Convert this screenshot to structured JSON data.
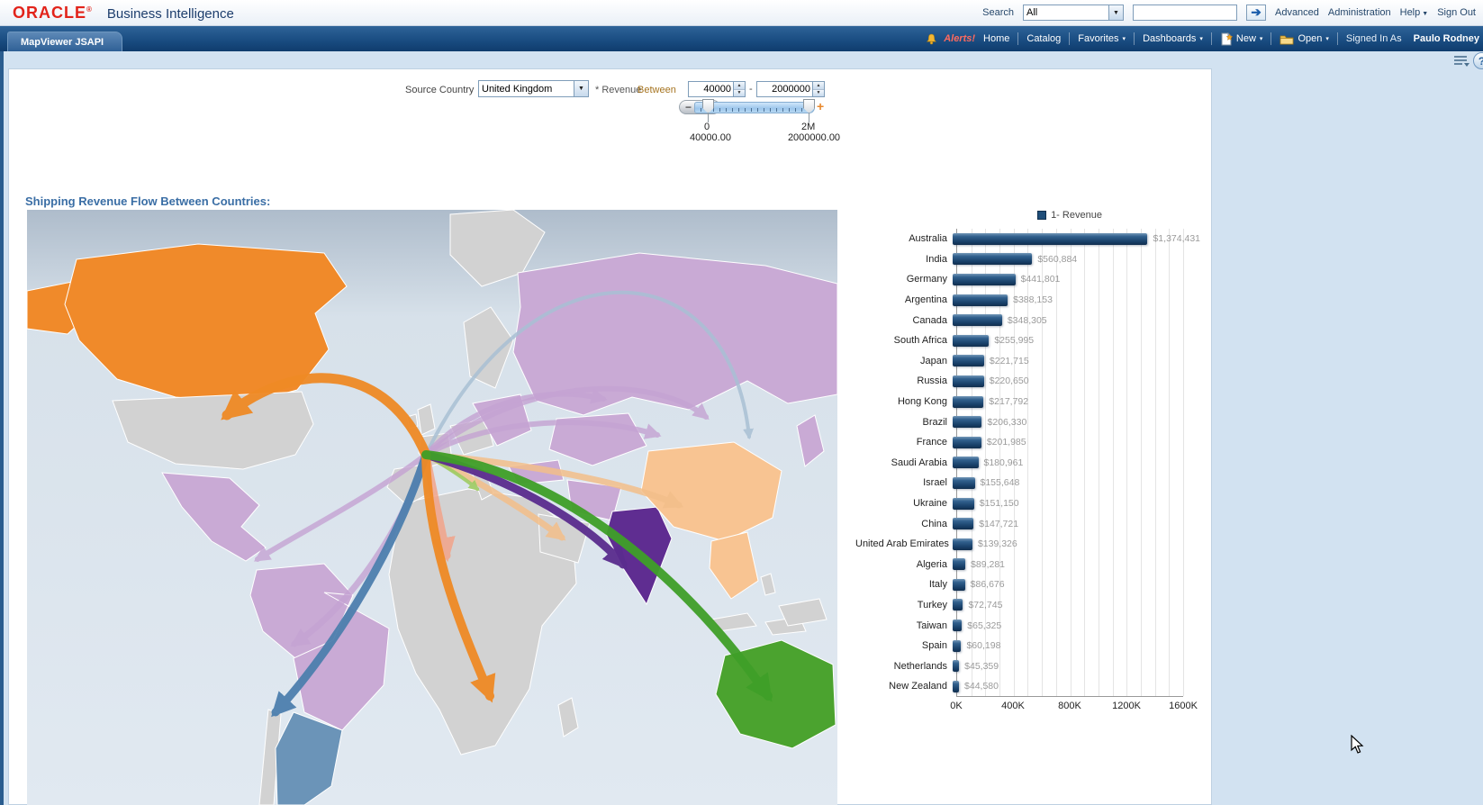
{
  "header": {
    "brand": "ORACLE",
    "product": "Business Intelligence",
    "search_label": "Search",
    "search_scope": "All",
    "search_value": "",
    "advanced": "Advanced",
    "administration": "Administration",
    "help": "Help",
    "sign_out": "Sign Out"
  },
  "navbar": {
    "tab": "MapViewer JSAPI",
    "alerts": "Alerts!",
    "items": [
      {
        "label": "Home",
        "caret": false
      },
      {
        "label": "Catalog",
        "caret": false
      },
      {
        "label": "Favorites",
        "caret": true
      },
      {
        "label": "Dashboards",
        "caret": true
      }
    ],
    "new_label": "New",
    "open_label": "Open",
    "signed_in_as": "Signed In As",
    "user": "Paulo Rodney"
  },
  "filters": {
    "source_country_label": "Source Country",
    "source_country_value": "United Kingdom",
    "revenue_label": "* Revenue",
    "between_label": "Between",
    "min_value": "40000",
    "max_value": "2000000",
    "slider": {
      "min_label": "0",
      "max_label": "2M",
      "lower_value": "40000.00",
      "upper_value": "2000000.00"
    }
  },
  "map_section": {
    "title": "Shipping Revenue Flow Between Countries:"
  },
  "chart_data": {
    "type": "bar",
    "orientation": "horizontal",
    "legend": "1- Revenue",
    "title": "",
    "xlabel": "",
    "ylabel": "",
    "categories": [
      "Australia",
      "India",
      "Germany",
      "Argentina",
      "Canada",
      "South Africa",
      "Japan",
      "Russia",
      "Hong Kong",
      "Brazil",
      "France",
      "Saudi Arabia",
      "Israel",
      "Ukraine",
      "China",
      "United Arab Emirates",
      "Algeria",
      "Italy",
      "Turkey",
      "Taiwan",
      "Spain",
      "Netherlands",
      "New Zealand"
    ],
    "values": [
      1374431,
      560884,
      441801,
      388153,
      348305,
      255995,
      221715,
      220650,
      217792,
      206330,
      201985,
      180961,
      155648,
      151150,
      147721,
      139326,
      89281,
      86676,
      72745,
      65325,
      60198,
      45359,
      44580
    ],
    "value_labels": [
      "$1,374,431",
      "$560,884",
      "$441,801",
      "$388,153",
      "$348,305",
      "$255,995",
      "$221,715",
      "$220,650",
      "$217,792",
      "$206,330",
      "$201,985",
      "$180,961",
      "$155,648",
      "$151,150",
      "$147,721",
      "$139,326",
      "$89,281",
      "$86,676",
      "$72,745",
      "$65,325",
      "$60,198",
      "$45,359",
      "$44,580"
    ],
    "x_ticks": [
      "0K",
      "400K",
      "800K",
      "1200K",
      "1600K"
    ],
    "xlim": [
      0,
      1600000
    ],
    "gridline_step": 100000,
    "legend_position": "top",
    "bar_color": "#1f4e79"
  },
  "icons": {
    "caret_down": "▼",
    "nav_caret": "▾",
    "go_arrow": "➔",
    "minus": "−",
    "plus": "+",
    "help": "?",
    "dash": "-"
  },
  "colors": {
    "oracle_red": "#e2231a",
    "navbar_blue": "#1a4d82",
    "title_blue": "#3a6ea5",
    "bar_blue": "#1f4e79",
    "between_gold": "#a5731f",
    "alerts_red": "#ff6a5e",
    "map": {
      "ocean": "#d9e2ea",
      "land": "#d2d2d2",
      "canada_orange": "#f08a2a",
      "russia_violet": "#c9aad5",
      "india_purple": "#5f2d91",
      "china_light_orange": "#f8c492",
      "australia_green": "#4ba32f",
      "argentina_blue": "#6b94b8"
    }
  }
}
